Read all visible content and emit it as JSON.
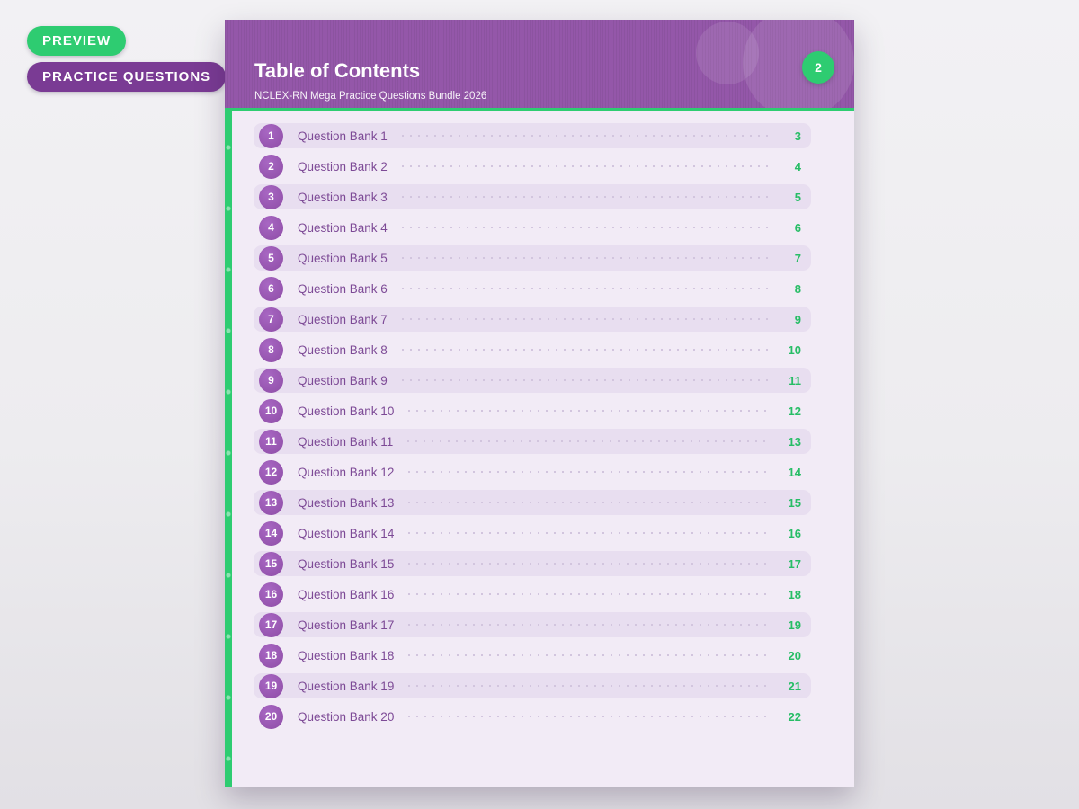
{
  "badges": {
    "preview": "PREVIEW",
    "practice_questions": "PRACTICE QUESTIONS"
  },
  "header": {
    "title": "Table of Contents",
    "subtitle": "NCLEX-RN Mega Practice Questions Bundle 2026",
    "page_badge": "2"
  },
  "toc": {
    "items": [
      {
        "number": "1",
        "label": "Question Bank 1",
        "page": "3"
      },
      {
        "number": "2",
        "label": "Question Bank 2",
        "page": "4"
      },
      {
        "number": "3",
        "label": "Question Bank 3",
        "page": "5"
      },
      {
        "number": "4",
        "label": "Question Bank 4",
        "page": "6"
      },
      {
        "number": "5",
        "label": "Question Bank 5",
        "page": "7"
      },
      {
        "number": "6",
        "label": "Question Bank 6",
        "page": "8"
      },
      {
        "number": "7",
        "label": "Question Bank 7",
        "page": "9"
      },
      {
        "number": "8",
        "label": "Question Bank 8",
        "page": "10"
      },
      {
        "number": "9",
        "label": "Question Bank 9",
        "page": "11"
      },
      {
        "number": "10",
        "label": "Question Bank 10",
        "page": "12"
      },
      {
        "number": "11",
        "label": "Question Bank 11",
        "page": "13"
      },
      {
        "number": "12",
        "label": "Question Bank 12",
        "page": "14"
      },
      {
        "number": "13",
        "label": "Question Bank 13",
        "page": "15"
      },
      {
        "number": "14",
        "label": "Question Bank 14",
        "page": "16"
      },
      {
        "number": "15",
        "label": "Question Bank 15",
        "page": "17"
      },
      {
        "number": "16",
        "label": "Question Bank 16",
        "page": "18"
      },
      {
        "number": "17",
        "label": "Question Bank 17",
        "page": "19"
      },
      {
        "number": "18",
        "label": "Question Bank 18",
        "page": "20"
      },
      {
        "number": "19",
        "label": "Question Bank 19",
        "page": "21"
      },
      {
        "number": "20",
        "label": "Question Bank 20",
        "page": "22"
      }
    ]
  },
  "colors": {
    "accent_green": "#2ecc71",
    "page_number_green": "#27bd66",
    "header_purple": "#9457a9",
    "badge_purple": "#7a3b94",
    "circle_purple": "#9b59b6",
    "label_purple": "#7d4a96",
    "row_highlight": "#e8def0",
    "content_background": "#f2ebf6"
  }
}
